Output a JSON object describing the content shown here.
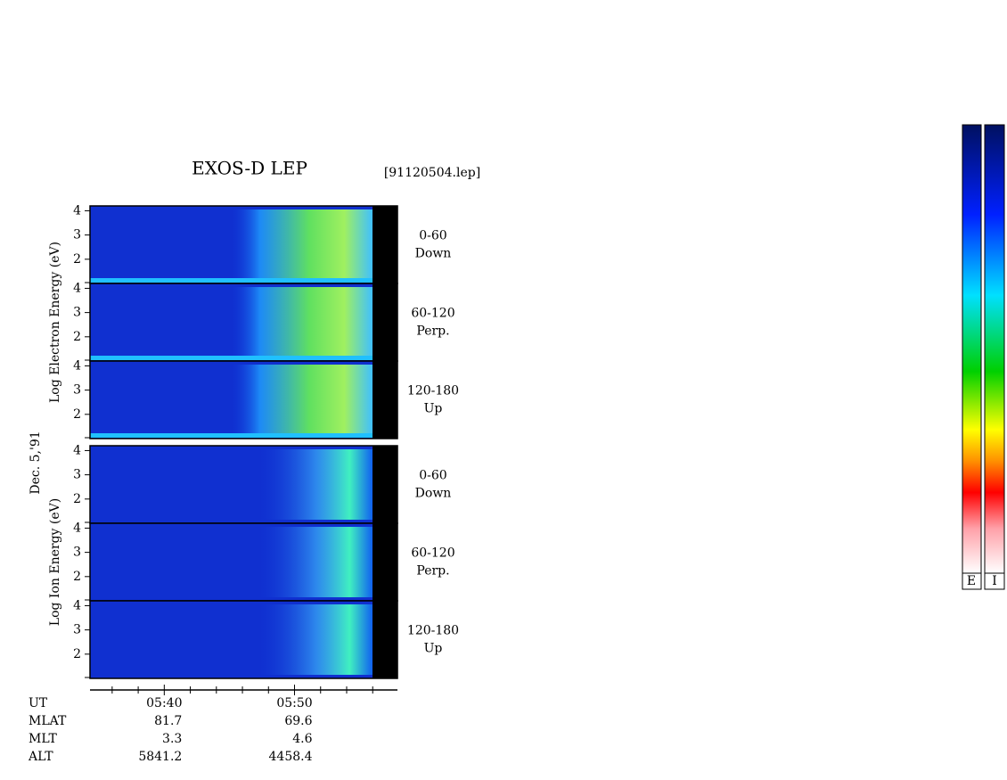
{
  "chart_data": {
    "type": "spectrogram",
    "title": "EXOS-D LEP",
    "file_label": "[91120504.lep]",
    "date_label": "Dec. 5,'91",
    "groups": [
      {
        "axis_label": "Log  Electron  Energy (eV)",
        "panels": [
          {
            "label": [
              "0-60",
              "Down"
            ]
          },
          {
            "label": [
              "60-120",
              "Perp."
            ]
          },
          {
            "label": [
              "120-180",
              "Up"
            ]
          }
        ]
      },
      {
        "axis_label": "Log  Ion  Energy (eV)",
        "panels": [
          {
            "label": [
              "0-60",
              "Down"
            ]
          },
          {
            "label": [
              "60-120",
              "Perp."
            ]
          },
          {
            "label": [
              "120-180",
              "Up"
            ]
          }
        ]
      }
    ],
    "ylim": [
      1,
      4.2
    ],
    "yticks": [
      2,
      3,
      4
    ],
    "xlim": [
      334.3,
      357.9
    ],
    "xticks": [
      {
        "value": 340,
        "label": "05:40"
      },
      {
        "value": 350,
        "label": "05:50"
      }
    ],
    "xminor": [
      336,
      338,
      342,
      344,
      346,
      348,
      352,
      354,
      356
    ],
    "x_label": "UT",
    "ephemeris": [
      {
        "name": "MLAT",
        "values": [
          81.7,
          69.6
        ]
      },
      {
        "name": "MLT",
        "values": [
          3.3,
          4.6
        ]
      },
      {
        "name": "ALT",
        "values": [
          5841.2,
          4458.4
        ]
      }
    ],
    "colorbar_labels": [
      "E",
      "I"
    ]
  }
}
